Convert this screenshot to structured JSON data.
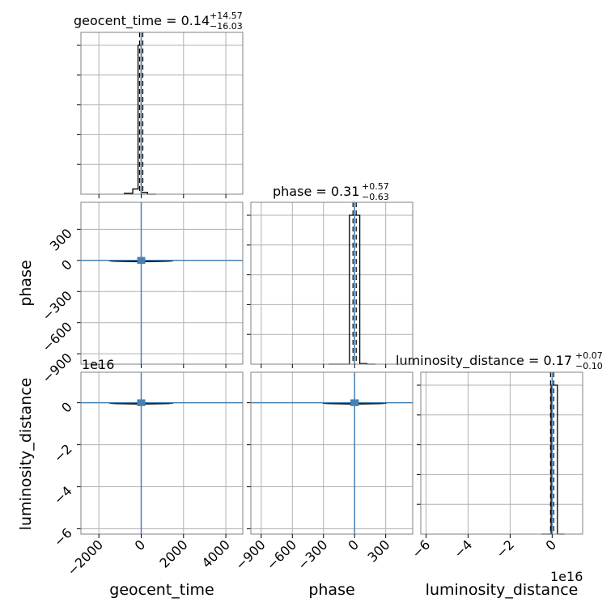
{
  "chart_data": {
    "type": "corner",
    "truth_color": "#4682b4",
    "parameters": [
      "geocent_time",
      "phase",
      "luminosity_distance"
    ],
    "titles": [
      {
        "param": "geocent_time",
        "text": "geocent_time = 0.14",
        "plus": "+14.57",
        "minus": "−16.03",
        "median": 0.14
      },
      {
        "param": "phase",
        "text": "phase = 0.31",
        "plus": "+0.57",
        "minus": "−0.63",
        "median": 0.31
      },
      {
        "param": "luminosity_distance",
        "text": "luminosity_distance = 0.17",
        "plus": "+0.07",
        "minus": "−0.10",
        "median": 0.17
      }
    ],
    "axis_labels": {
      "x": [
        "geocent_time",
        "phase",
        "luminosity_distance"
      ],
      "y": [
        "phase",
        "luminosity_distance"
      ]
    },
    "ranges": {
      "geocent_time": [
        -2850,
        4800
      ],
      "phase": [
        -1000,
        560
      ],
      "luminosity_distance": [
        -6.25,
        1.45
      ]
    },
    "ticks": {
      "geocent_time": [
        "−2000",
        "0",
        "2000",
        "4000"
      ],
      "phase": [
        "−900",
        "−600",
        "−300",
        "0",
        "300"
      ],
      "luminosity_distance": [
        "−6",
        "−4",
        "−2",
        "0"
      ]
    },
    "tick_values": {
      "geocent_time": [
        -2000,
        0,
        2000,
        4000
      ],
      "phase": [
        -900,
        -600,
        -300,
        0,
        300
      ],
      "luminosity_distance": [
        -6,
        -4,
        -2,
        0
      ]
    },
    "offset_text": "1e16",
    "histograms": {
      "geocent_time": {
        "edges": [
          -800,
          -400,
          -150,
          0,
          300,
          700
        ],
        "heights": [
          0.006,
          0.035,
          1.0,
          0.012,
          0.0
        ]
      },
      "phase": {
        "edges": [
          -250,
          -50,
          50,
          120,
          200
        ],
        "heights": [
          0.0,
          1.0,
          0.004,
          0.0
        ]
      },
      "luminosity_distance": {
        "edges": [
          -0.5,
          -0.05,
          0.25,
          0.6
        ],
        "heights": [
          0.0,
          1.0,
          0.0
        ]
      }
    },
    "truths": {
      "geocent_time": 0,
      "phase": 0,
      "luminosity_distance": 0
    },
    "grid": true
  }
}
